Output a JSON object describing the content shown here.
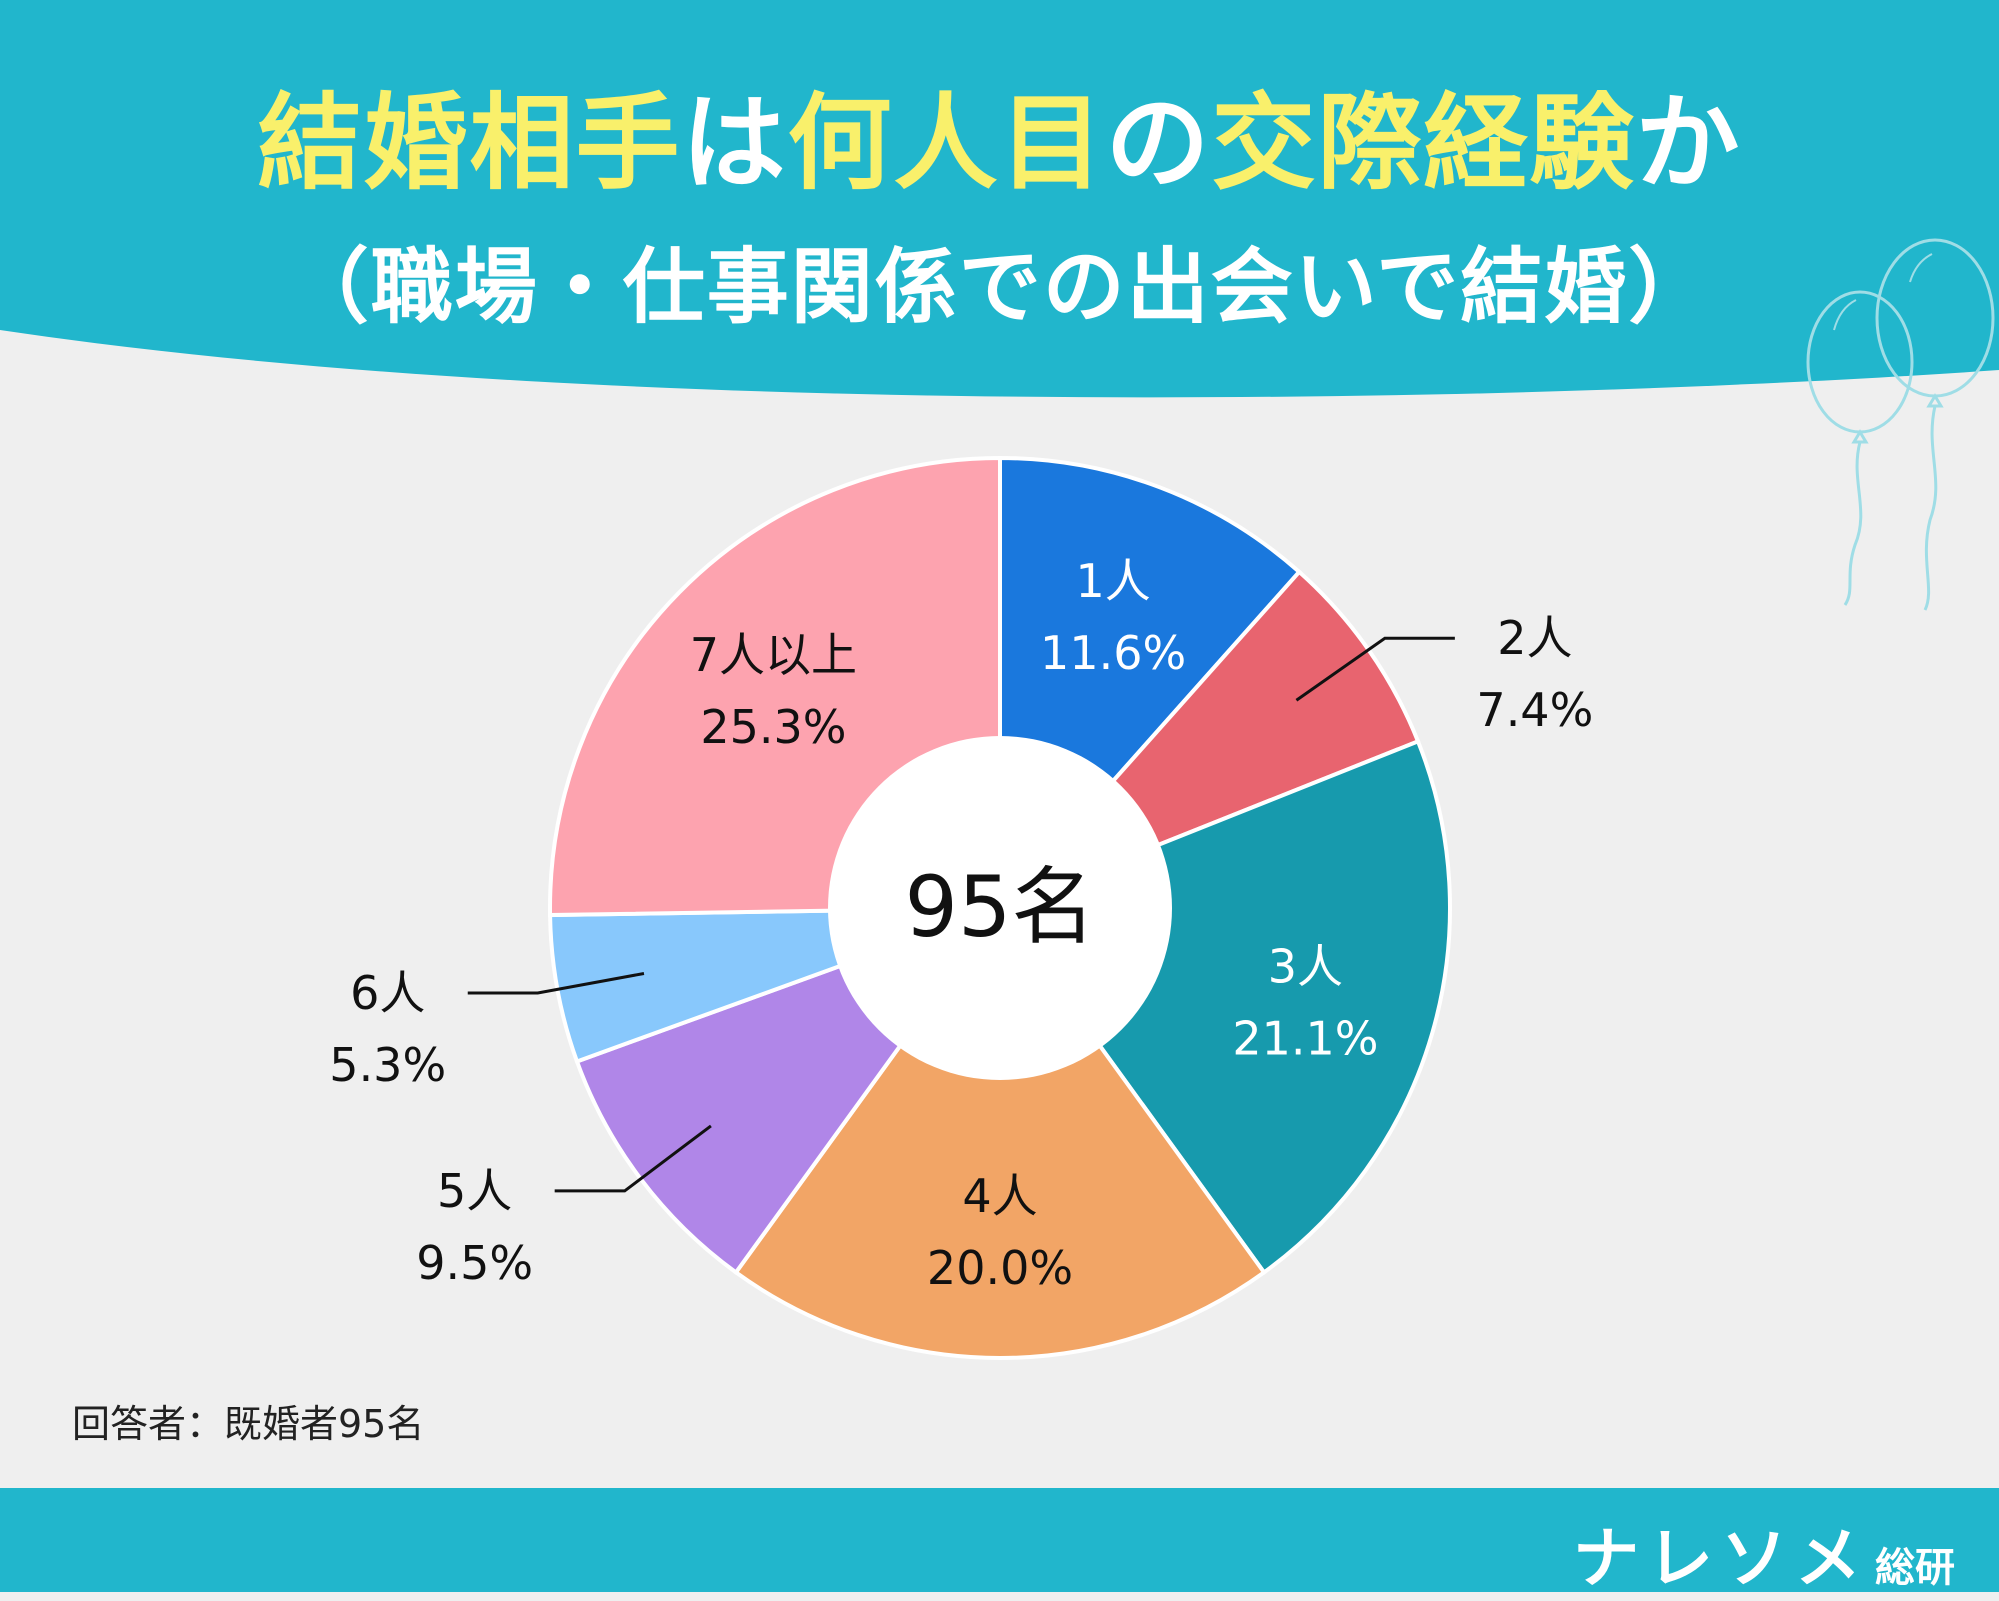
{
  "header": {
    "title_parts": [
      {
        "text": "結婚相手",
        "highlight": true
      },
      {
        "text": "は",
        "highlight": false
      },
      {
        "text": "何人目",
        "highlight": true
      },
      {
        "text": "の",
        "highlight": false
      },
      {
        "text": "交際経験",
        "highlight": true
      },
      {
        "text": "か",
        "highlight": false
      }
    ],
    "subtitle": "（職場・仕事関係での出会いで結婚）"
  },
  "chart_data": {
    "type": "pie",
    "center_label": "95名",
    "categories": [
      "1人",
      "2人",
      "3人",
      "4人",
      "5人",
      "6人",
      "7人以上"
    ],
    "values": [
      11.6,
      7.4,
      21.1,
      20.0,
      9.5,
      5.3,
      25.3
    ],
    "value_labels": [
      "11.6%",
      "7.4%",
      "21.1%",
      "20.0%",
      "9.5%",
      "5.3%",
      "25.3%"
    ],
    "colors": [
      "#1a78dd",
      "#e8646f",
      "#179aad",
      "#f2a566",
      "#b086e8",
      "#88c8fc",
      "#fda3af"
    ],
    "label_colors": [
      "#ffffff",
      "#111111",
      "#ffffff",
      "#111111",
      "#111111",
      "#111111",
      "#111111"
    ],
    "start_angle_deg": 0,
    "direction": "clockwise"
  },
  "note": "回答者：既婚者95名",
  "brand": {
    "name": "ナレソメ",
    "suffix": "総研"
  },
  "colors": {
    "header_bg": "#21b6cc",
    "title_highlight": "#f9f06b",
    "background": "#efefef"
  },
  "decoration": {
    "icon": "balloons-icon"
  }
}
